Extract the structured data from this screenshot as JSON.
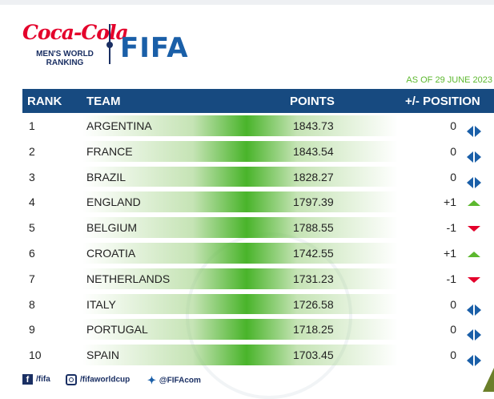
{
  "branding": {
    "sponsor": "Coca-Cola",
    "ranking_title_line1": "MEN'S WORLD",
    "ranking_title_line2": "RANKING",
    "org": "FIFA"
  },
  "as_of": "AS OF 29 JUNE 2023",
  "headers": {
    "rank": "RANK",
    "team": "TEAM",
    "points": "POINTS",
    "position": "+/- POSITION"
  },
  "rows": [
    {
      "rank": "1",
      "team": "ARGENTINA",
      "points": "1843.73",
      "change": "0",
      "trend": "same"
    },
    {
      "rank": "2",
      "team": "FRANCE",
      "points": "1843.54",
      "change": "0",
      "trend": "same"
    },
    {
      "rank": "3",
      "team": "BRAZIL",
      "points": "1828.27",
      "change": "0",
      "trend": "same"
    },
    {
      "rank": "4",
      "team": "ENGLAND",
      "points": "1797.39",
      "change": "+1",
      "trend": "up"
    },
    {
      "rank": "5",
      "team": "BELGIUM",
      "points": "1788.55",
      "change": "-1",
      "trend": "down"
    },
    {
      "rank": "6",
      "team": "CROATIA",
      "points": "1742.55",
      "change": "+1",
      "trend": "up"
    },
    {
      "rank": "7",
      "team": "NETHERLANDS",
      "points": "1731.23",
      "change": "-1",
      "trend": "down"
    },
    {
      "rank": "8",
      "team": "ITALY",
      "points": "1726.58",
      "change": "0",
      "trend": "same"
    },
    {
      "rank": "9",
      "team": "PORTUGAL",
      "points": "1718.25",
      "change": "0",
      "trend": "same"
    },
    {
      "rank": "10",
      "team": "SPAIN",
      "points": "1703.45",
      "change": "0",
      "trend": "same"
    }
  ],
  "footer": {
    "facebook": "/fifa",
    "instagram": "/fifaworldcup",
    "twitter": "@FIFAcom"
  },
  "colors": {
    "header_bg": "#174a80",
    "accent_green": "#5cb82e",
    "down_red": "#e4002b",
    "brand_blue": "#1a5fa8"
  }
}
